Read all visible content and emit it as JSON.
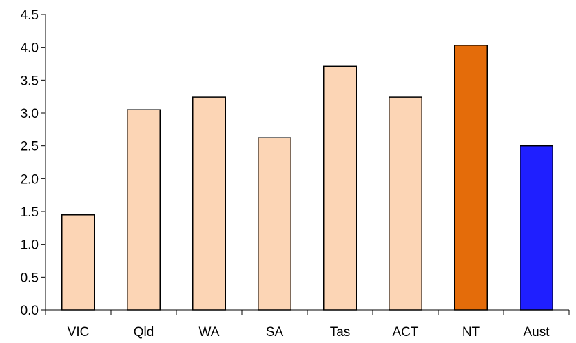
{
  "chart_data": {
    "type": "bar",
    "title": "",
    "xlabel": "",
    "ylabel": "",
    "categories": [
      "VIC",
      "Qld",
      "WA",
      "SA",
      "Tas",
      "ACT",
      "NT",
      "Aust"
    ],
    "values": [
      1.45,
      3.05,
      3.24,
      2.62,
      3.71,
      3.24,
      4.03,
      2.5
    ],
    "colors": [
      "#fcd5b5",
      "#fcd5b5",
      "#fcd5b5",
      "#fcd5b5",
      "#fcd5b5",
      "#fcd5b5",
      "#e46c0a",
      "#1f1fff"
    ],
    "ylim": [
      0,
      4.5
    ],
    "yticks": [
      "0.0",
      "0.5",
      "1.0",
      "1.5",
      "2.0",
      "2.5",
      "3.0",
      "3.5",
      "4.0",
      "4.5"
    ],
    "grid": false,
    "legend": "none"
  }
}
